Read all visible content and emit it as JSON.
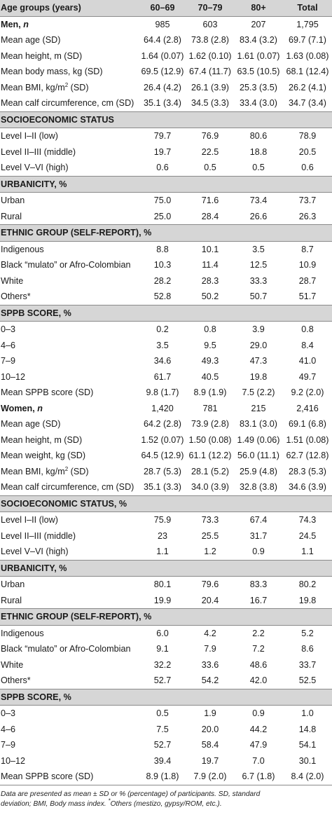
{
  "header": [
    "Age groups (years)",
    "60–69",
    "70–79",
    "80+",
    "Total"
  ],
  "rows": [
    {
      "type": "group",
      "label": "Men, ",
      "label_italic": "n",
      "values": [
        "985",
        "603",
        "207",
        "1,795"
      ]
    },
    {
      "type": "row",
      "label": "Mean age (SD)",
      "values": [
        "64.4 (2.8)",
        "73.8 (2.8)",
        "83.4 (3.2)",
        "69.7 (7.1)"
      ]
    },
    {
      "type": "row",
      "label": "Mean height, m (SD)",
      "values": [
        "1.64 (0.07)",
        "1.62 (0.10)",
        "1.61 (0.07)",
        "1.63 (0.08)"
      ]
    },
    {
      "type": "row",
      "label": "Mean body mass, kg (SD)",
      "values": [
        "69.5 (12.9)",
        "67.4 (11.7)",
        "63.5 (10.5)",
        "68.1 (12.4)"
      ]
    },
    {
      "type": "row",
      "label": "Mean BMI, kg/m",
      "sup": "2",
      "label_after": " (SD)",
      "values": [
        "26.4 (4.2)",
        "26.1 (3.9)",
        "25.3 (3.5)",
        "26.2 (4.1)"
      ]
    },
    {
      "type": "row",
      "label": "Mean calf circumference, cm (SD)",
      "values": [
        "35.1 (3.4)",
        "34.5 (3.3)",
        "33.4 (3.0)",
        "34.7 (3.4)"
      ]
    },
    {
      "type": "section",
      "label": "SOCIOECONOMIC STATUS"
    },
    {
      "type": "row",
      "label": "Level I–II (low)",
      "values": [
        "79.7",
        "76.9",
        "80.6",
        "78.9"
      ]
    },
    {
      "type": "row",
      "label": "Level II–III (middle)",
      "values": [
        "19.7",
        "22.5",
        "18.8",
        "20.5"
      ]
    },
    {
      "type": "row",
      "label": "Level V–VI (high)",
      "values": [
        "0.6",
        "0.5",
        "0.5",
        "0.6"
      ]
    },
    {
      "type": "section",
      "label": "URBANICITY, %"
    },
    {
      "type": "row",
      "label": "Urban",
      "values": [
        "75.0",
        "71.6",
        "73.4",
        "73.7"
      ]
    },
    {
      "type": "row",
      "label": "Rural",
      "values": [
        "25.0",
        "28.4",
        "26.6",
        "26.3"
      ]
    },
    {
      "type": "section",
      "label": "ETHNIC GROUP (SELF-REPORT), %"
    },
    {
      "type": "row",
      "label": "Indigenous",
      "values": [
        "8.8",
        "10.1",
        "3.5",
        "8.7"
      ]
    },
    {
      "type": "row",
      "label": "Black “mulato” or Afro-Colombian",
      "values": [
        "10.3",
        "11.4",
        "12.5",
        "10.9"
      ]
    },
    {
      "type": "row",
      "label": "White",
      "values": [
        "28.2",
        "28.3",
        "33.3",
        "28.7"
      ]
    },
    {
      "type": "row",
      "label": "Others*",
      "values": [
        "52.8",
        "50.2",
        "50.7",
        "51.7"
      ]
    },
    {
      "type": "section",
      "label": "SPPB SCORE, %"
    },
    {
      "type": "row",
      "label": "0–3",
      "values": [
        "0.2",
        "0.8",
        "3.9",
        "0.8"
      ]
    },
    {
      "type": "row",
      "label": "4–6",
      "values": [
        "3.5",
        "9.5",
        "29.0",
        "8.4"
      ]
    },
    {
      "type": "row",
      "label": "7–9",
      "values": [
        "34.6",
        "49.3",
        "47.3",
        "41.0"
      ]
    },
    {
      "type": "row",
      "label": "10–12",
      "values": [
        "61.7",
        "40.5",
        "19.8",
        "49.7"
      ]
    },
    {
      "type": "row",
      "label": "Mean SPPB score (SD)",
      "values": [
        "9.8 (1.7)",
        "8.9 (1.9)",
        "7.5 (2.2)",
        "9.2 (2.0)"
      ]
    },
    {
      "type": "group",
      "label": "Women, ",
      "label_italic": "n",
      "values": [
        "1,420",
        "781",
        "215",
        "2,416"
      ]
    },
    {
      "type": "row",
      "label": "Mean age (SD)",
      "values": [
        "64.2 (2.8)",
        "73.9 (2.8)",
        "83.1 (3.0)",
        "69.1 (6.8)"
      ]
    },
    {
      "type": "row",
      "label": "Mean height, m (SD)",
      "values": [
        "1.52 (0.07)",
        "1.50 (0.08)",
        "1.49 (0.06)",
        "1.51 (0.08)"
      ]
    },
    {
      "type": "row",
      "label": "Mean weight, kg (SD)",
      "values": [
        "64.5 (12.9)",
        "61.1 (12.2)",
        "56.0 (11.1)",
        "62.7 (12.8)"
      ]
    },
    {
      "type": "row",
      "label": "Mean BMI, kg/m",
      "sup": "2",
      "label_after": " (SD)",
      "values": [
        "28.7 (5.3)",
        "28.1 (5.2)",
        "25.9 (4.8)",
        "28.3 (5.3)"
      ]
    },
    {
      "type": "row",
      "label": "Mean calf circumference, cm (SD)",
      "values": [
        "35.1 (3.3)",
        "34.0 (3.9)",
        "32.8 (3.8)",
        "34.6 (3.9)"
      ]
    },
    {
      "type": "section",
      "label": "SOCIOECONOMIC STATUS, %"
    },
    {
      "type": "row",
      "label": "Level I–II (low)",
      "values": [
        "75.9",
        "73.3",
        "67.4",
        "74.3"
      ]
    },
    {
      "type": "row",
      "label": "Level II–III (middle)",
      "values": [
        "23",
        "25.5",
        "31.7",
        "24.5"
      ]
    },
    {
      "type": "row",
      "label": "Level V–VI (high)",
      "values": [
        "1.1",
        "1.2",
        "0.9",
        "1.1"
      ]
    },
    {
      "type": "section",
      "label": "URBANICITY, %"
    },
    {
      "type": "row",
      "label": "Urban",
      "values": [
        "80.1",
        "79.6",
        "83.3",
        "80.2"
      ]
    },
    {
      "type": "row",
      "label": "Rural",
      "values": [
        "19.9",
        "20.4",
        "16.7",
        "19.8"
      ]
    },
    {
      "type": "section",
      "label": "ETHNIC GROUP (SELF-REPORT), %"
    },
    {
      "type": "row",
      "label": "Indigenous",
      "values": [
        "6.0",
        "4.2",
        "2.2",
        "5.2"
      ]
    },
    {
      "type": "row",
      "label": "Black “mulato” or Afro-Colombian",
      "values": [
        "9.1",
        "7.9",
        "7.2",
        "8.6"
      ]
    },
    {
      "type": "row",
      "label": "White",
      "values": [
        "32.2",
        "33.6",
        "48.6",
        "33.7"
      ]
    },
    {
      "type": "row",
      "label": "Others*",
      "values": [
        "52.7",
        "54.2",
        "42.0",
        "52.5"
      ]
    },
    {
      "type": "section",
      "label": "SPPB SCORE, %"
    },
    {
      "type": "row",
      "label": "0–3",
      "values": [
        "0.5",
        "1.9",
        "0.9",
        "1.0"
      ]
    },
    {
      "type": "row",
      "label": "4–6",
      "values": [
        "7.5",
        "20.0",
        "44.2",
        "14.8"
      ]
    },
    {
      "type": "row",
      "label": "7–9",
      "values": [
        "52.7",
        "58.4",
        "47.9",
        "54.1"
      ]
    },
    {
      "type": "row",
      "label": "10–12",
      "values": [
        "39.4",
        "19.7",
        "7.0",
        "30.1"
      ]
    },
    {
      "type": "row",
      "label": "Mean SPPB score (SD)",
      "values": [
        "8.9 (1.8)",
        "7.9 (2.0)",
        "6.7 (1.8)",
        "8.4 (2.0)"
      ]
    }
  ],
  "footnote": {
    "line1": "Data are presented as mean ± SD or % (percentage) of participants. SD, standard",
    "line2_a": "deviation; BMI, Body mass index. ",
    "line2_sup": "*",
    "line2_b": "Others (mestizo, gypsy/ROM, etc.)."
  }
}
